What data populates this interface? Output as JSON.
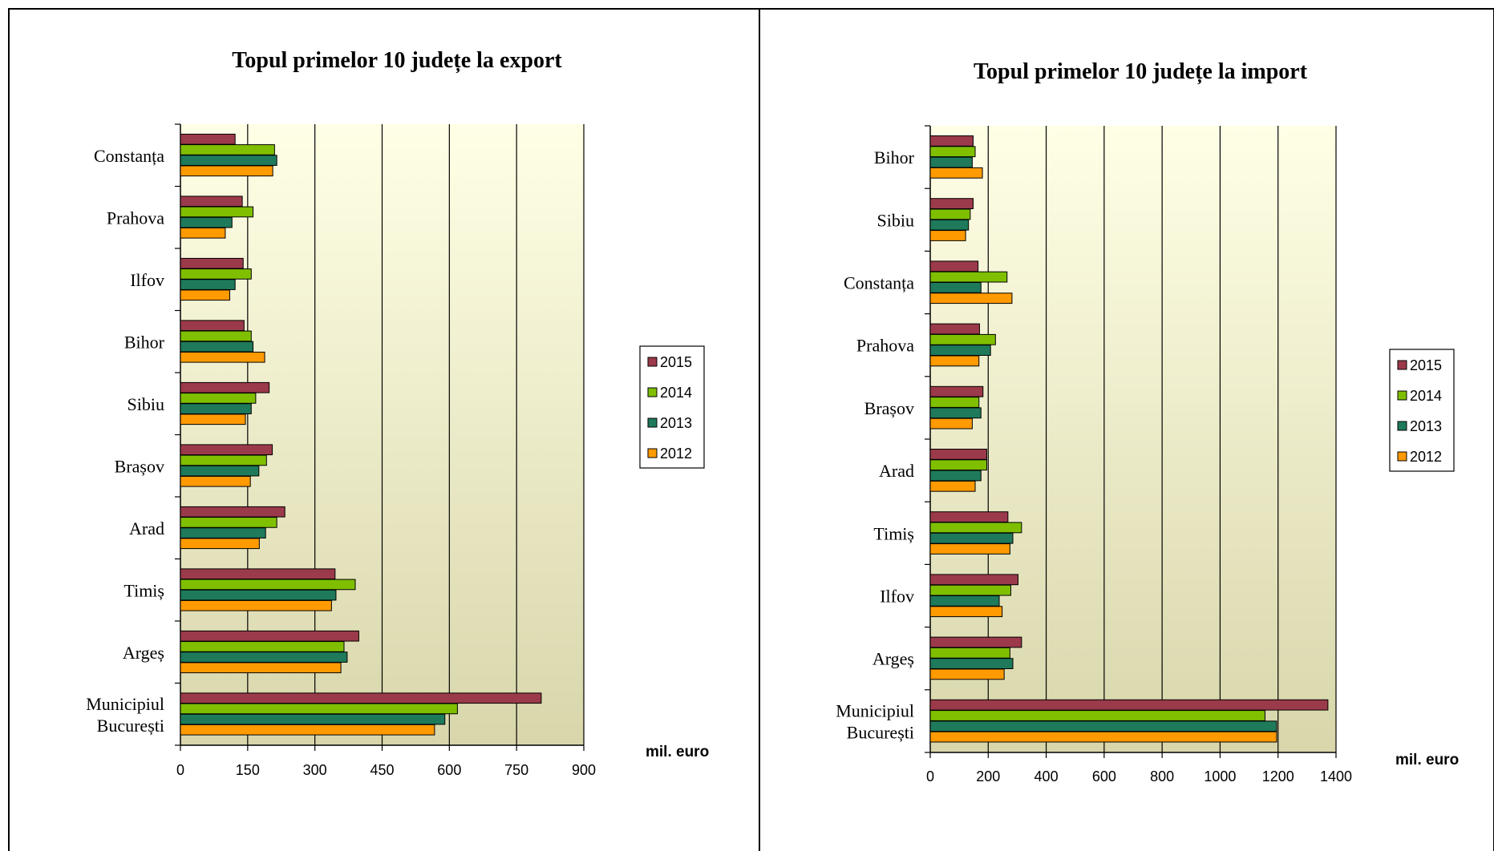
{
  "colors": {
    "2015": "#9b3a4a",
    "2014": "#7fbf00",
    "2013": "#1e7a5a",
    "2012": "#ff9a00",
    "plot_top": "#ffffe6",
    "plot_bottom": "#d8d6aa"
  },
  "chart_data": [
    {
      "type": "bar",
      "orientation": "horizontal",
      "title": "Topul primelor 10 județe la export",
      "unit_label": "mil. euro",
      "xlim": [
        0,
        900
      ],
      "ticks": [
        "0",
        "150",
        "300",
        "450",
        "600",
        "750",
        "900"
      ],
      "tick_values": [
        0,
        150,
        300,
        450,
        600,
        750,
        900
      ],
      "legend_position": "right",
      "categories": [
        {
          "lines": [
            "Constanța"
          ]
        },
        {
          "lines": [
            "Prahova"
          ]
        },
        {
          "lines": [
            "Ilfov"
          ]
        },
        {
          "lines": [
            "Bihor"
          ]
        },
        {
          "lines": [
            "Sibiu"
          ]
        },
        {
          "lines": [
            "Brașov"
          ]
        },
        {
          "lines": [
            "Arad"
          ]
        },
        {
          "lines": [
            "Timiș"
          ]
        },
        {
          "lines": [
            "Argeș"
          ]
        },
        {
          "lines": [
            "Municipiul",
            "București"
          ]
        }
      ],
      "series": [
        {
          "name": "2015",
          "values": [
            122,
            138,
            140,
            142,
            198,
            205,
            233,
            345,
            398,
            805
          ]
        },
        {
          "name": "2014",
          "values": [
            210,
            162,
            158,
            158,
            168,
            192,
            215,
            390,
            365,
            618
          ]
        },
        {
          "name": "2013",
          "values": [
            215,
            115,
            122,
            162,
            158,
            175,
            190,
            347,
            372,
            590
          ]
        },
        {
          "name": "2012",
          "values": [
            206,
            100,
            110,
            188,
            145,
            156,
            176,
            337,
            358,
            567
          ]
        }
      ]
    },
    {
      "type": "bar",
      "orientation": "horizontal",
      "title": "Topul primelor 10 județe la import",
      "unit_label": "mil. euro",
      "xlim": [
        0,
        1400
      ],
      "ticks": [
        "0",
        "200",
        "400",
        "600",
        "800",
        "1000",
        "1200",
        "1400"
      ],
      "tick_values": [
        0,
        200,
        400,
        600,
        800,
        1000,
        1200,
        1400
      ],
      "legend_position": "right",
      "categories": [
        {
          "lines": [
            "Bihor"
          ]
        },
        {
          "lines": [
            "Sibiu"
          ]
        },
        {
          "lines": [
            "Constanța"
          ]
        },
        {
          "lines": [
            "Prahova"
          ]
        },
        {
          "lines": [
            "Brașov"
          ]
        },
        {
          "lines": [
            "Arad"
          ]
        },
        {
          "lines": [
            "Timiș"
          ]
        },
        {
          "lines": [
            "Ilfov"
          ]
        },
        {
          "lines": [
            "Argeș"
          ]
        },
        {
          "lines": [
            "Municipiul",
            "București"
          ]
        }
      ],
      "series": [
        {
          "name": "2015",
          "values": [
            148,
            148,
            165,
            170,
            182,
            195,
            268,
            303,
            315,
            1372
          ]
        },
        {
          "name": "2014",
          "values": [
            155,
            138,
            265,
            225,
            168,
            195,
            315,
            278,
            275,
            1155
          ]
        },
        {
          "name": "2013",
          "values": [
            145,
            132,
            175,
            208,
            175,
            175,
            285,
            238,
            285,
            1195
          ]
        },
        {
          "name": "2012",
          "values": [
            180,
            122,
            282,
            168,
            145,
            155,
            275,
            248,
            255,
            1195
          ]
        }
      ]
    }
  ]
}
